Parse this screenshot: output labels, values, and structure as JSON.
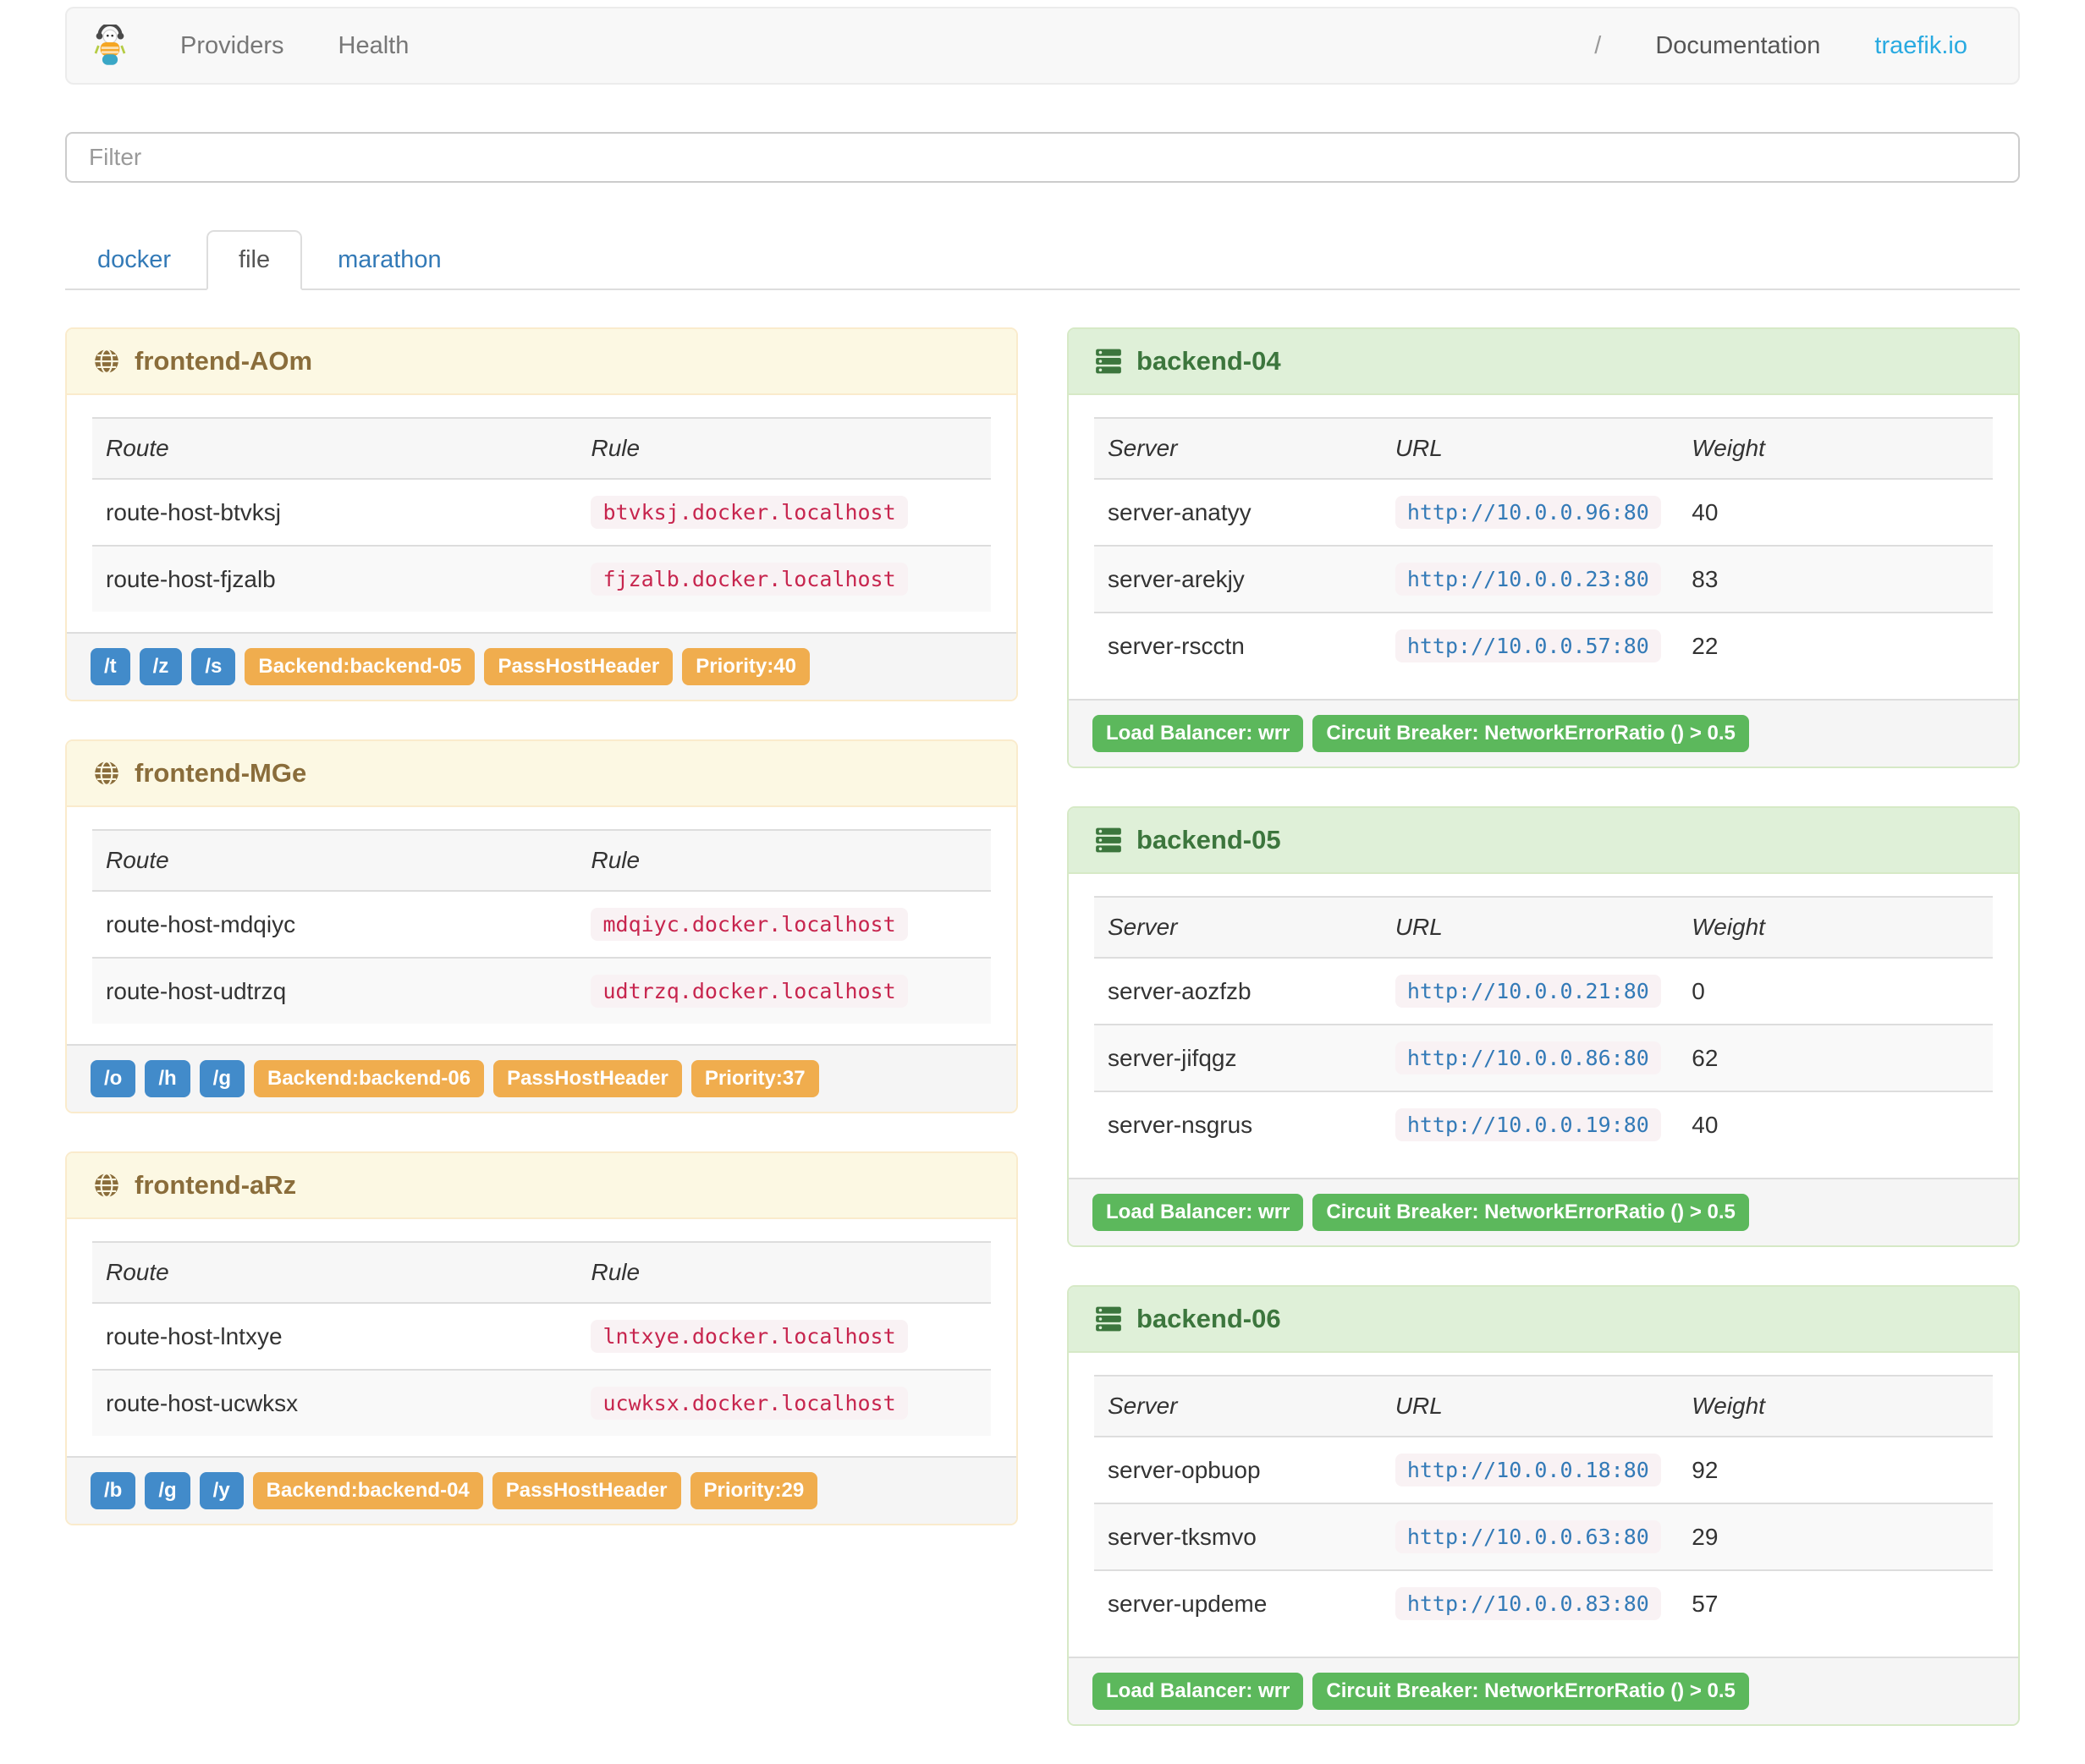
{
  "navbar": {
    "left_links": [
      {
        "label": "Providers"
      },
      {
        "label": "Health"
      }
    ],
    "right_links": [
      {
        "label": "/"
      },
      {
        "label": "Documentation"
      },
      {
        "label": "traefik.io"
      }
    ]
  },
  "filter": {
    "placeholder": "Filter"
  },
  "tabs": [
    {
      "label": "docker",
      "active": false
    },
    {
      "label": "file",
      "active": true
    },
    {
      "label": "marathon",
      "active": false
    }
  ],
  "frontend_table_columns": [
    "Route",
    "Rule"
  ],
  "backend_table_columns": [
    "Server",
    "URL",
    "Weight"
  ],
  "frontends": [
    {
      "title": "frontend-AOm",
      "routes": [
        {
          "route": "route-host-btvksj",
          "rule": "btvksj.docker.localhost"
        },
        {
          "route": "route-host-fjzalb",
          "rule": "fjzalb.docker.localhost"
        }
      ],
      "rule_badges": [
        "/t",
        "/z",
        "/s"
      ],
      "attr_badges": [
        "Backend:backend-05",
        "PassHostHeader",
        "Priority:40"
      ]
    },
    {
      "title": "frontend-MGe",
      "routes": [
        {
          "route": "route-host-mdqiyc",
          "rule": "mdqiyc.docker.localhost"
        },
        {
          "route": "route-host-udtrzq",
          "rule": "udtrzq.docker.localhost"
        }
      ],
      "rule_badges": [
        "/o",
        "/h",
        "/g"
      ],
      "attr_badges": [
        "Backend:backend-06",
        "PassHostHeader",
        "Priority:37"
      ]
    },
    {
      "title": "frontend-aRz",
      "routes": [
        {
          "route": "route-host-lntxye",
          "rule": "lntxye.docker.localhost"
        },
        {
          "route": "route-host-ucwksx",
          "rule": "ucwksx.docker.localhost"
        }
      ],
      "rule_badges": [
        "/b",
        "/g",
        "/y"
      ],
      "attr_badges": [
        "Backend:backend-04",
        "PassHostHeader",
        "Priority:29"
      ]
    }
  ],
  "backends": [
    {
      "title": "backend-04",
      "servers": [
        {
          "server": "server-anatyy",
          "url": "http://10.0.0.96:80",
          "weight": "40"
        },
        {
          "server": "server-arekjy",
          "url": "http://10.0.0.23:80",
          "weight": "83"
        },
        {
          "server": "server-rscctn",
          "url": "http://10.0.0.57:80",
          "weight": "22"
        }
      ],
      "badges": [
        "Load Balancer: wrr",
        "Circuit Breaker: NetworkErrorRatio () > 0.5"
      ]
    },
    {
      "title": "backend-05",
      "servers": [
        {
          "server": "server-aozfzb",
          "url": "http://10.0.0.21:80",
          "weight": "0"
        },
        {
          "server": "server-jifqgz",
          "url": "http://10.0.0.86:80",
          "weight": "62"
        },
        {
          "server": "server-nsgrus",
          "url": "http://10.0.0.19:80",
          "weight": "40"
        }
      ],
      "badges": [
        "Load Balancer: wrr",
        "Circuit Breaker: NetworkErrorRatio () > 0.5"
      ]
    },
    {
      "title": "backend-06",
      "servers": [
        {
          "server": "server-opbuop",
          "url": "http://10.0.0.18:80",
          "weight": "92"
        },
        {
          "server": "server-tksmvo",
          "url": "http://10.0.0.63:80",
          "weight": "29"
        },
        {
          "server": "server-updeme",
          "url": "http://10.0.0.83:80",
          "weight": "57"
        }
      ],
      "badges": [
        "Load Balancer: wrr",
        "Circuit Breaker: NetworkErrorRatio () > 0.5"
      ]
    }
  ],
  "icons": {
    "brand": "traefik-mascot-logo",
    "frontend": "globe-icon",
    "backend": "server-stack-icon"
  },
  "colors": {
    "brand_link": "#29aae1",
    "link_blue": "#337ab7",
    "badge_blue": "#428bca",
    "badge_orange": "#f0ad4e",
    "badge_green": "#5cb85c",
    "code_pink": "#c7254e",
    "code_bg": "#f9f2f4",
    "warning_bg": "#fcf8e3",
    "warning_text": "#8a6d3b",
    "success_bg": "#dff0d8",
    "success_text": "#3c763d",
    "footer_bg": "#f5f5f5"
  }
}
